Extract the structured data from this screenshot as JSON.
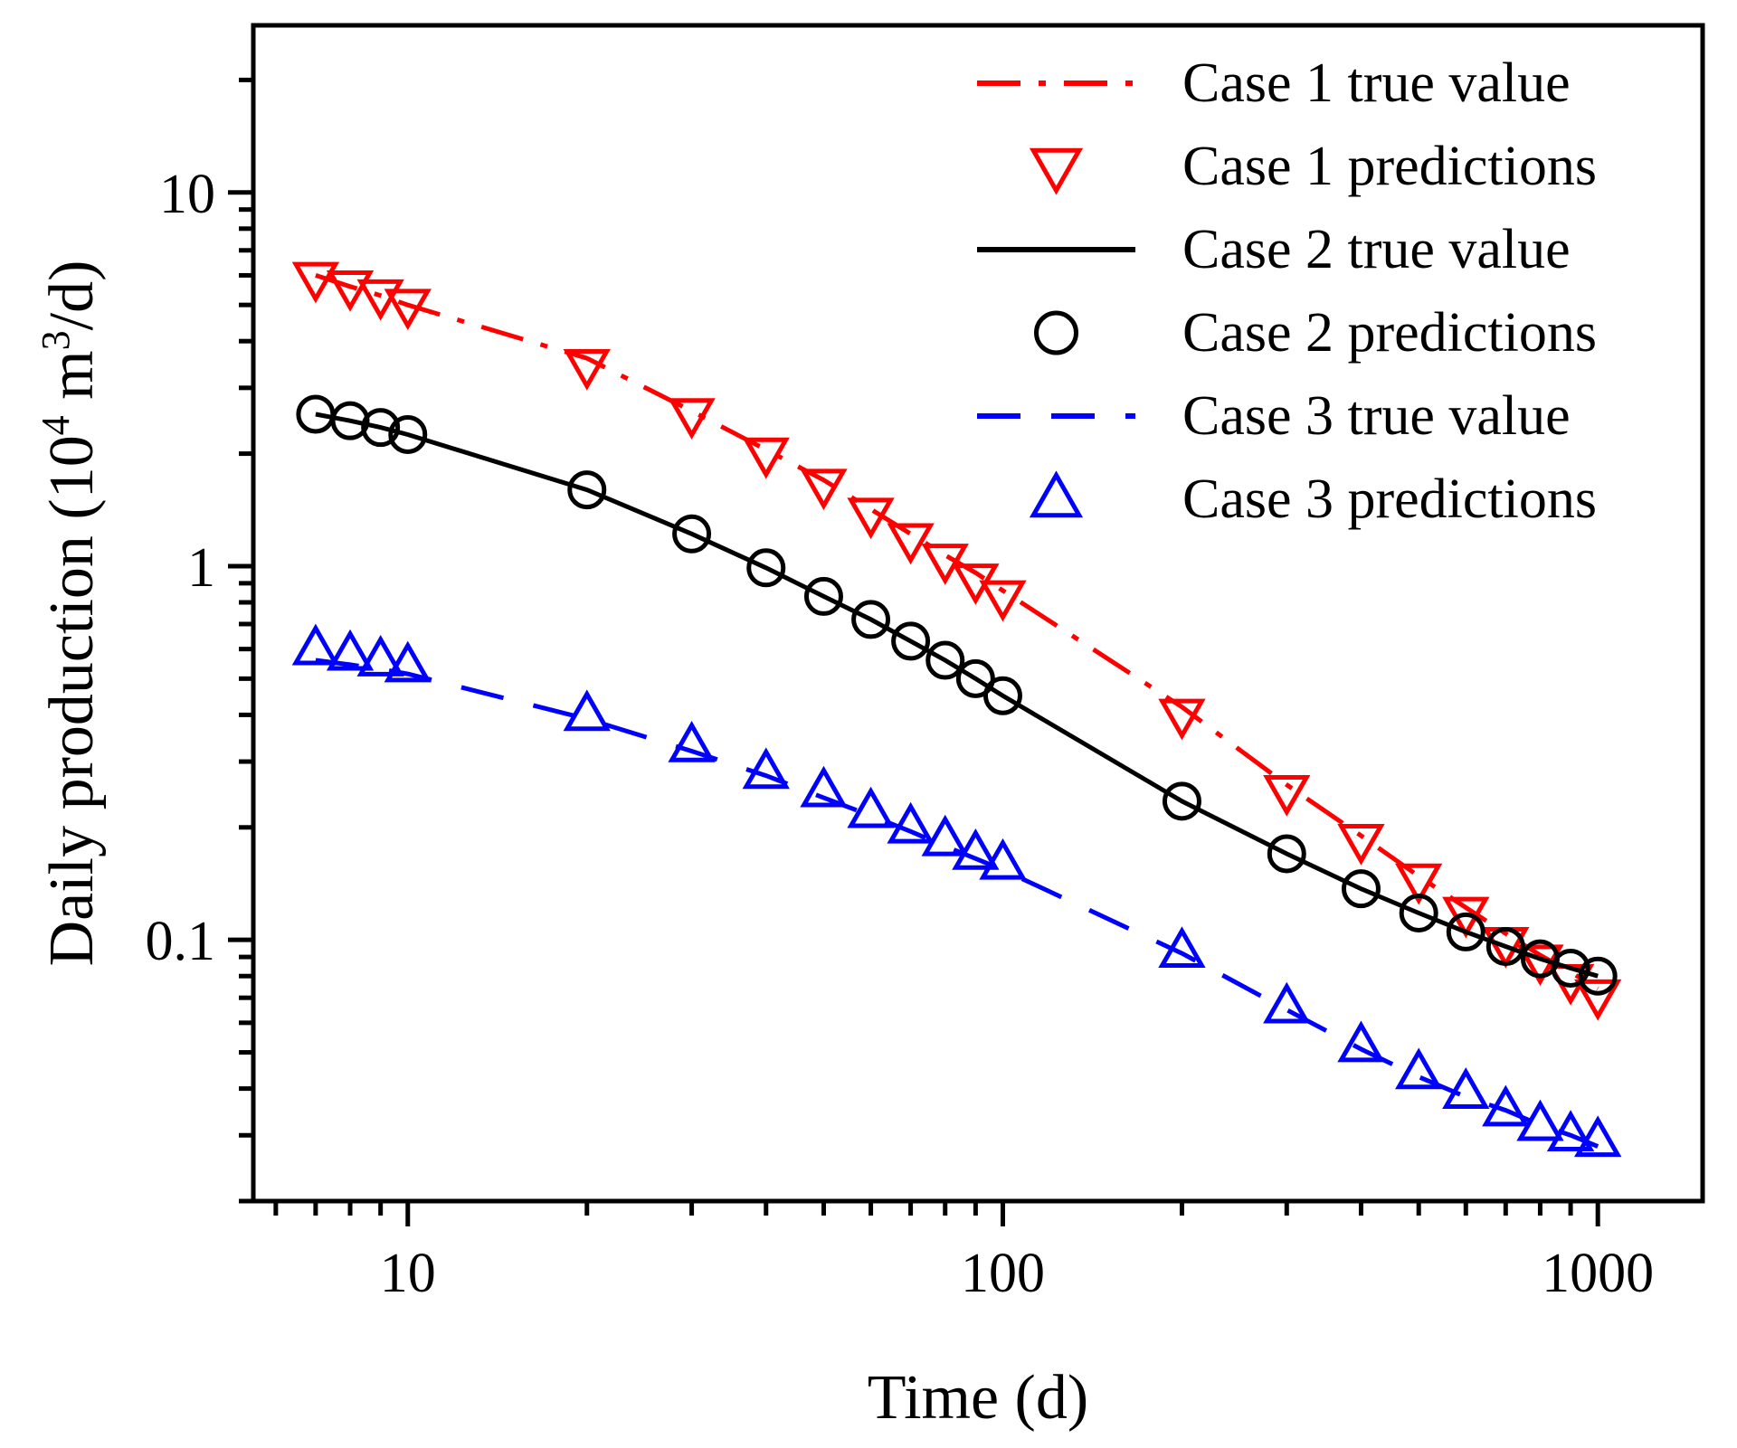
{
  "chart_data": {
    "type": "line",
    "xlabel": "Time (d)",
    "ylabel_main": "Daily production (10",
    "ylabel_sup": "4",
    "ylabel_mid": " m",
    "ylabel_sup2": "3",
    "ylabel_end": "/d)",
    "xscale": "log",
    "yscale": "log",
    "xlim": [
      5.5,
      1500
    ],
    "ylim": [
      0.02,
      28
    ],
    "xticks": [
      {
        "value": 10,
        "label": "10"
      },
      {
        "value": 100,
        "label": "100"
      },
      {
        "value": 1000,
        "label": "1000"
      }
    ],
    "yticks": [
      {
        "value": 0.1,
        "label": "0.1"
      },
      {
        "value": 1,
        "label": "1"
      },
      {
        "value": 10,
        "label": "10"
      }
    ],
    "grid": false,
    "legend_position": "top-right",
    "series": [
      {
        "name": "Case 1 true value",
        "kind": "line",
        "color": "#ff0000",
        "dash": "dash-dot",
        "points": [
          [
            7,
            6.0
          ],
          [
            8,
            5.6
          ],
          [
            9,
            5.3
          ],
          [
            10,
            5.0
          ],
          [
            20,
            3.6
          ],
          [
            30,
            2.6
          ],
          [
            40,
            2.05
          ],
          [
            50,
            1.7
          ],
          [
            60,
            1.42
          ],
          [
            70,
            1.22
          ],
          [
            80,
            1.07
          ],
          [
            90,
            0.96
          ],
          [
            100,
            0.86
          ],
          [
            200,
            0.42
          ],
          [
            300,
            0.26
          ],
          [
            400,
            0.19
          ],
          [
            500,
            0.148
          ],
          [
            600,
            0.122
          ],
          [
            700,
            0.104
          ],
          [
            800,
            0.091
          ],
          [
            900,
            0.082
          ],
          [
            1000,
            0.074
          ]
        ]
      },
      {
        "name": "Case 1 predictions",
        "kind": "marker",
        "marker": "triangle-down",
        "color": "#ff0000",
        "points": [
          [
            7,
            5.9
          ],
          [
            8,
            5.6
          ],
          [
            9,
            5.3
          ],
          [
            10,
            5.0
          ],
          [
            20,
            3.45
          ],
          [
            30,
            2.55
          ],
          [
            40,
            2.0
          ],
          [
            50,
            1.65
          ],
          [
            60,
            1.38
          ],
          [
            70,
            1.18
          ],
          [
            80,
            1.04
          ],
          [
            90,
            0.92
          ],
          [
            100,
            0.83
          ],
          [
            200,
            0.4
          ],
          [
            300,
            0.25
          ],
          [
            400,
            0.185
          ],
          [
            500,
            0.145
          ],
          [
            600,
            0.118
          ],
          [
            700,
            0.098
          ],
          [
            800,
            0.088
          ],
          [
            900,
            0.078
          ],
          [
            1000,
            0.071
          ]
        ]
      },
      {
        "name": "Case 2 true value",
        "kind": "line",
        "color": "#000000",
        "dash": "solid",
        "points": [
          [
            7,
            2.55
          ],
          [
            8,
            2.45
          ],
          [
            9,
            2.35
          ],
          [
            10,
            2.25
          ],
          [
            20,
            1.6
          ],
          [
            30,
            1.22
          ],
          [
            40,
            0.99
          ],
          [
            50,
            0.83
          ],
          [
            60,
            0.72
          ],
          [
            70,
            0.63
          ],
          [
            80,
            0.56
          ],
          [
            90,
            0.5
          ],
          [
            100,
            0.45
          ],
          [
            200,
            0.235
          ],
          [
            300,
            0.17
          ],
          [
            400,
            0.137
          ],
          [
            500,
            0.118
          ],
          [
            600,
            0.105
          ],
          [
            700,
            0.096
          ],
          [
            800,
            0.089
          ],
          [
            900,
            0.084
          ],
          [
            1000,
            0.08
          ]
        ]
      },
      {
        "name": "Case 2 predictions",
        "kind": "marker",
        "marker": "circle",
        "color": "#000000",
        "points": [
          [
            7,
            2.55
          ],
          [
            8,
            2.45
          ],
          [
            9,
            2.35
          ],
          [
            10,
            2.25
          ],
          [
            20,
            1.6
          ],
          [
            30,
            1.22
          ],
          [
            40,
            0.99
          ],
          [
            50,
            0.83
          ],
          [
            60,
            0.72
          ],
          [
            70,
            0.63
          ],
          [
            80,
            0.56
          ],
          [
            90,
            0.5
          ],
          [
            100,
            0.45
          ],
          [
            200,
            0.235
          ],
          [
            300,
            0.17
          ],
          [
            400,
            0.137
          ],
          [
            500,
            0.118
          ],
          [
            600,
            0.105
          ],
          [
            700,
            0.096
          ],
          [
            800,
            0.089
          ],
          [
            900,
            0.084
          ],
          [
            1000,
            0.08
          ]
        ]
      },
      {
        "name": "Case 3 true value",
        "kind": "line",
        "color": "#0000ff",
        "dash": "dash",
        "points": [
          [
            7,
            0.56
          ],
          [
            8,
            0.545
          ],
          [
            9,
            0.53
          ],
          [
            10,
            0.515
          ],
          [
            20,
            0.39
          ],
          [
            30,
            0.32
          ],
          [
            40,
            0.275
          ],
          [
            50,
            0.24
          ],
          [
            60,
            0.215
          ],
          [
            70,
            0.195
          ],
          [
            80,
            0.178
          ],
          [
            90,
            0.165
          ],
          [
            100,
            0.154
          ],
          [
            200,
            0.092
          ],
          [
            300,
            0.065
          ],
          [
            400,
            0.051
          ],
          [
            500,
            0.043
          ],
          [
            600,
            0.038
          ],
          [
            700,
            0.035
          ],
          [
            800,
            0.032
          ],
          [
            900,
            0.03
          ],
          [
            1000,
            0.028
          ]
        ]
      },
      {
        "name": "Case 3 predictions",
        "kind": "marker",
        "marker": "triangle-up",
        "color": "#0000ff",
        "points": [
          [
            7,
            0.6
          ],
          [
            8,
            0.58
          ],
          [
            9,
            0.56
          ],
          [
            10,
            0.54
          ],
          [
            20,
            0.4
          ],
          [
            30,
            0.33
          ],
          [
            40,
            0.28
          ],
          [
            50,
            0.25
          ],
          [
            60,
            0.22
          ],
          [
            70,
            0.2
          ],
          [
            80,
            0.185
          ],
          [
            90,
            0.17
          ],
          [
            100,
            0.16
          ],
          [
            200,
            0.093
          ],
          [
            300,
            0.066
          ],
          [
            400,
            0.052
          ],
          [
            500,
            0.044
          ],
          [
            600,
            0.039
          ],
          [
            700,
            0.035
          ],
          [
            800,
            0.032
          ],
          [
            900,
            0.03
          ],
          [
            1000,
            0.029
          ]
        ]
      }
    ]
  }
}
